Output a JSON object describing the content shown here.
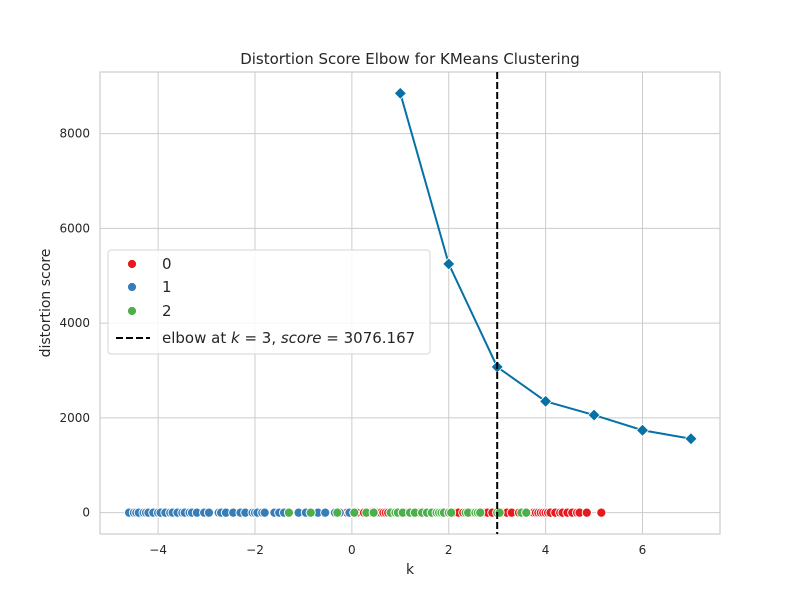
{
  "chart_data": {
    "type": "line",
    "title": "Distortion Score Elbow for KMeans Clustering",
    "xlabel": "k",
    "ylabel": "distortion score",
    "xlim": [
      -5.2,
      7.6
    ],
    "ylim": [
      -450,
      9300
    ],
    "xticks": [
      -4,
      -2,
      0,
      2,
      4,
      6
    ],
    "yticks": [
      0,
      2000,
      4000,
      6000,
      8000
    ],
    "grid": true,
    "legend_position": "center-left",
    "series": [
      {
        "type": "line",
        "marker": "diamond",
        "color": "#0571a5",
        "x": [
          1,
          2,
          3,
          4,
          5,
          6,
          7
        ],
        "y": [
          8850,
          5250,
          3076.167,
          2350,
          2060,
          1740,
          1560
        ]
      }
    ],
    "elbow": {
      "k": 3,
      "score": 3076.167,
      "color": "#000000",
      "style": "dashed"
    },
    "scatter": [
      {
        "name": "0",
        "color": "#e41a1c",
        "y": 0,
        "x": [
          -0.1,
          0.0,
          0.1,
          0.25,
          0.4,
          0.55,
          0.6,
          0.65,
          0.7,
          0.75,
          0.85,
          1.0,
          1.1,
          1.35,
          1.4,
          2.1,
          2.2,
          2.3,
          2.5,
          2.7,
          2.75,
          2.8,
          2.9,
          3.1,
          3.2,
          3.3,
          3.45,
          3.55,
          3.75,
          3.8,
          3.85,
          3.9,
          3.95,
          4.0,
          4.05,
          4.1,
          4.2,
          4.3,
          4.35,
          4.45,
          4.55,
          4.65,
          4.7,
          4.85,
          5.15
        ]
      },
      {
        "name": "1",
        "color": "#377eb8",
        "y": 0,
        "x": [
          -4.6,
          -4.5,
          -4.45,
          -4.4,
          -4.3,
          -4.25,
          -4.2,
          -4.1,
          -4.0,
          -3.95,
          -3.85,
          -3.75,
          -3.7,
          -3.6,
          -3.5,
          -3.45,
          -3.35,
          -3.3,
          -3.2,
          -3.05,
          -2.95,
          -2.75,
          -2.7,
          -2.6,
          -2.45,
          -2.3,
          -2.2,
          -2.05,
          -2.0,
          -1.95,
          -1.85,
          -1.8,
          -1.6,
          -1.5,
          -1.4,
          -1.1,
          -0.95,
          -0.7,
          -0.55,
          -0.35,
          -0.25,
          -0.05
        ]
      },
      {
        "name": "2",
        "color": "#4daf4a",
        "y": 0,
        "x": [
          -1.3,
          -0.85,
          -0.3,
          0.05,
          0.3,
          0.45,
          0.8,
          0.9,
          0.95,
          1.05,
          1.2,
          1.3,
          1.45,
          1.55,
          1.65,
          1.75,
          1.8,
          1.85,
          1.9,
          2.0,
          2.05,
          2.35,
          2.4,
          2.55,
          2.6,
          2.65,
          3.0,
          3.05,
          3.5,
          3.6
        ]
      }
    ],
    "legend": [
      {
        "label": "0",
        "kind": "dot",
        "color": "#e41a1c"
      },
      {
        "label": "1",
        "kind": "dot",
        "color": "#377eb8"
      },
      {
        "label": "2",
        "kind": "dot",
        "color": "#4daf4a"
      },
      {
        "label": "elbow at ",
        "kind": "dashed-line",
        "color": "#000000",
        "math_parts": [
          "elbow at ",
          "k",
          " = 3, ",
          "score",
          " = 3076.167"
        ]
      }
    ]
  }
}
